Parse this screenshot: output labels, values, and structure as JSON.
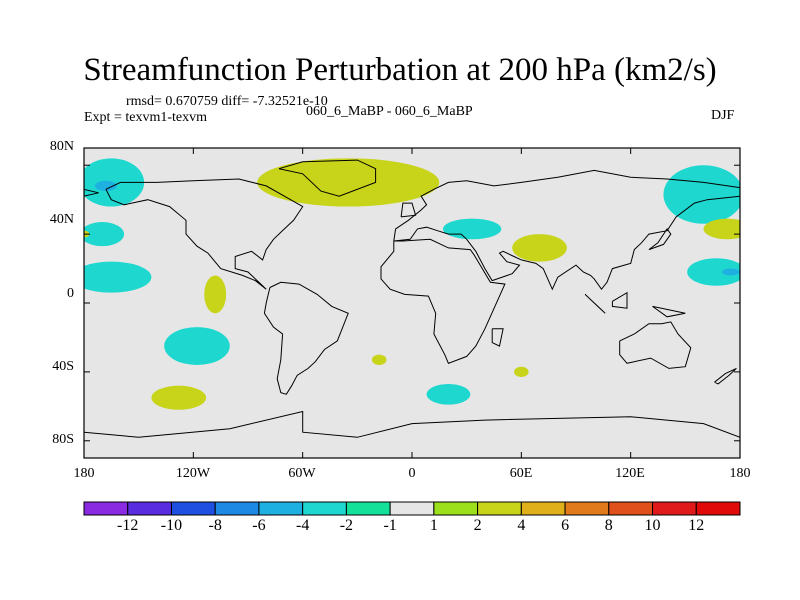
{
  "title": "Streamfunction Perturbation at 200 hPa (km2/s)",
  "stats_line": "rmsd= 0.670759 diff= -7.32521e-10",
  "expt_line": "Expt = texvm1-texvm",
  "case_line": "060_6_MaBP - 060_6_MaBP",
  "season": "DJF",
  "lat_labels": [
    "80N",
    "40N",
    "0",
    "40S",
    "80S"
  ],
  "lon_labels": [
    "180",
    "120W",
    "60W",
    "0",
    "60E",
    "120E",
    "180"
  ],
  "colorbar": {
    "labels": [
      "-12",
      "-10",
      "-8",
      "-6",
      "-4",
      "-2",
      "-1",
      "1",
      "2",
      "4",
      "6",
      "8",
      "10",
      "12"
    ],
    "colors": [
      "#8a2be2",
      "#5a2ce0",
      "#1e4fe0",
      "#1e88e5",
      "#1eb0e0",
      "#1ed8d0",
      "#14e09a",
      "#e6e6e6",
      "#9be01a",
      "#c8d41a",
      "#e0b01a",
      "#e07a1a",
      "#e0501a",
      "#e01a1a",
      "#e00a0a"
    ]
  },
  "chart_data": {
    "type": "heatmap",
    "title": "Streamfunction Perturbation at 200 hPa (km2/s)",
    "xlim": [
      -180,
      180
    ],
    "ylim": [
      -90,
      90
    ],
    "blobs": [
      {
        "lon": -165,
        "lat": 70,
        "rlon": 18,
        "rlat": 14,
        "level": "-2"
      },
      {
        "lon": -168,
        "lat": 68,
        "rlon": 6,
        "rlat": 3,
        "level": "-4"
      },
      {
        "lon": -170,
        "lat": 40,
        "rlon": 12,
        "rlat": 7,
        "level": "-2"
      },
      {
        "lon": -180,
        "lat": 40,
        "rlon": 3,
        "rlat": 2,
        "level": "2"
      },
      {
        "lon": -165,
        "lat": 15,
        "rlon": 22,
        "rlat": 9,
        "level": "-2"
      },
      {
        "lon": -108,
        "lat": 5,
        "rlon": 6,
        "rlat": 11,
        "level": "2"
      },
      {
        "lon": -118,
        "lat": -25,
        "rlon": 18,
        "rlat": 11,
        "level": "-2"
      },
      {
        "lon": -128,
        "lat": -55,
        "rlon": 15,
        "rlat": 7,
        "level": "2"
      },
      {
        "lon": -35,
        "lat": 70,
        "rlon": 50,
        "rlat": 14,
        "level": "2"
      },
      {
        "lon": -10,
        "lat": 72,
        "rlon": 18,
        "rlat": 8,
        "level": "2"
      },
      {
        "lon": 33,
        "lat": 43,
        "rlon": 16,
        "rlat": 6,
        "level": "-2"
      },
      {
        "lon": 70,
        "lat": 32,
        "rlon": 15,
        "rlat": 8,
        "level": "2"
      },
      {
        "lon": -18,
        "lat": -33,
        "rlon": 4,
        "rlat": 3,
        "level": "2"
      },
      {
        "lon": 20,
        "lat": -53,
        "rlon": 12,
        "rlat": 6,
        "level": "-2"
      },
      {
        "lon": 60,
        "lat": -40,
        "rlon": 4,
        "rlat": 3,
        "level": "2"
      },
      {
        "lon": 160,
        "lat": 63,
        "rlon": 22,
        "rlat": 17,
        "level": "-2"
      },
      {
        "lon": 173,
        "lat": 43,
        "rlon": 13,
        "rlat": 6,
        "level": "2"
      },
      {
        "lon": 167,
        "lat": 18,
        "rlon": 16,
        "rlat": 8,
        "level": "-2"
      },
      {
        "lon": 175,
        "lat": 18,
        "rlon": 5,
        "rlat": 2,
        "level": "-4"
      }
    ]
  }
}
